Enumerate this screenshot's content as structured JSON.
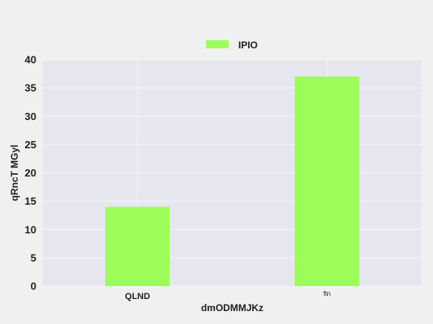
{
  "chart_data": {
    "type": "bar",
    "categories": [
      "QLND",
      "ftn"
    ],
    "series": [
      {
        "name": "IPIO",
        "values": [
          14,
          37
        ]
      }
    ],
    "xlabel": "dmODMMJKz",
    "ylabel": "qRncT MGyl",
    "ylim": [
      0,
      40
    ],
    "yticks": [
      0,
      5,
      10,
      15,
      20,
      25,
      30,
      35,
      40
    ],
    "grid": true,
    "legend_position": "top-center",
    "colors": {
      "bar": "#9dfc5a",
      "plot_background": "#e6e6ef",
      "page_background": "#f0f0f0",
      "grid": "#f5f5f8"
    }
  }
}
